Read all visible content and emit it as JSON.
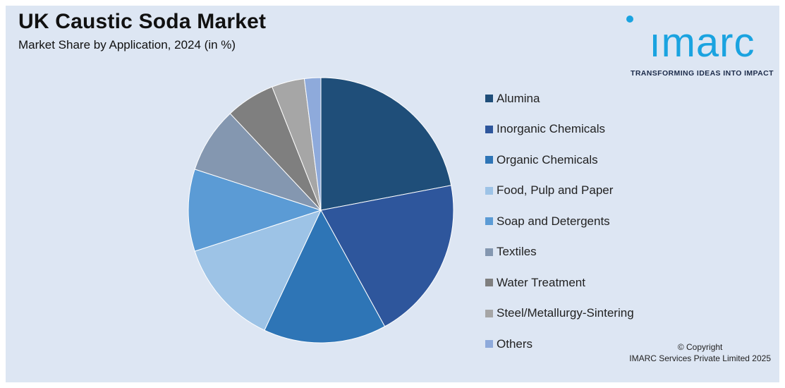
{
  "header": {
    "title": "UK Caustic Soda Market",
    "subtitle": "Market Share by Application, 2024 (in %)"
  },
  "logo": {
    "word": "ımarc",
    "tagline": "TRANSFORMING IDEAS INTO IMPACT",
    "color": "#1aa3e0"
  },
  "chart_data": {
    "type": "pie",
    "title": "UK Caustic Soda Market",
    "subtitle": "Market Share by Application, 2024 (in %)",
    "start_angle_deg": 0,
    "direction": "clockwise",
    "legend_position": "right",
    "categories": [
      "Alumina",
      "Inorganic Chemicals",
      "Organic Chemicals",
      "Food, Pulp and Paper",
      "Soap and Detergents",
      "Textiles",
      "Water Treatment",
      "Steel/Metallurgy-Sintering",
      "Others"
    ],
    "values": [
      22,
      20,
      15,
      13,
      10,
      8,
      6,
      4,
      2
    ],
    "colors": [
      "#1f4e79",
      "#2e569c",
      "#2e75b6",
      "#9dc3e6",
      "#5b9bd5",
      "#8497b0",
      "#7f7f7f",
      "#a6a6a6",
      "#8eaadb"
    ]
  },
  "footer": {
    "copyright_line1": "© Copyright",
    "copyright_line2": "IMARC Services Private Limited 2025"
  }
}
